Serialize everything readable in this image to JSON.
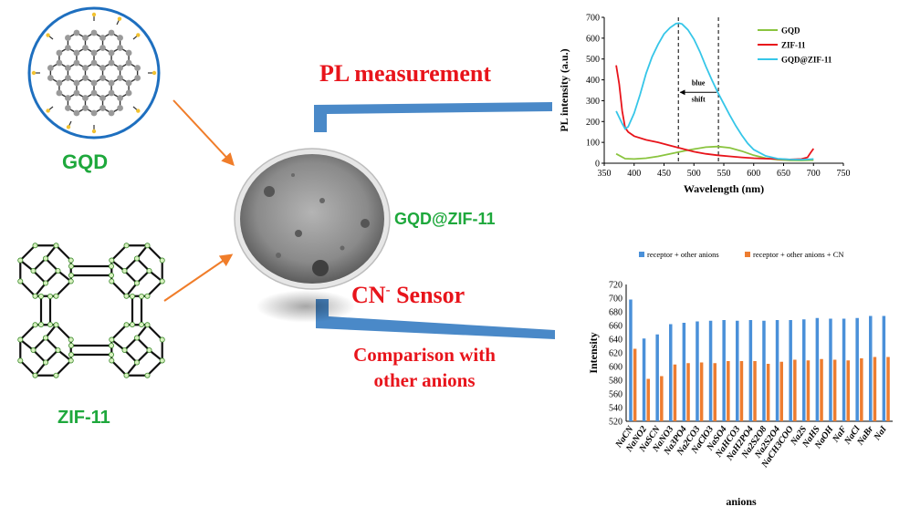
{
  "labels": {
    "gqd": "GQD",
    "zif": "ZIF-11",
    "composite": "GQD@ZIF-11",
    "pl_measurement": "PL measurement",
    "cn_sensor_main": "CN",
    "cn_sensor_sup": "-",
    "cn_sensor_rest": " Sensor",
    "comparison_line1": "Comparison with",
    "comparison_line2": "other anions"
  },
  "colors": {
    "label_green": "#1ea83c",
    "label_red": "#e8141b",
    "arrow_orange": "#f07d2a",
    "callout_blue": "#4a89c8"
  },
  "chart_data": [
    {
      "type": "line",
      "xlabel": "Wavelength (nm)",
      "ylabel": "PL intensity (a.u.)",
      "xlim": [
        350,
        750
      ],
      "ylim": [
        0,
        700
      ],
      "xticks": [
        350,
        400,
        450,
        500,
        550,
        600,
        650,
        700,
        750
      ],
      "yticks": [
        0,
        100,
        200,
        300,
        400,
        500,
        600,
        700
      ],
      "legend_position": "top-right",
      "annotation": {
        "line1": "blue",
        "line2": "shift",
        "from_x": 541,
        "to_x": 474
      },
      "dashed_lines_x": [
        474,
        541
      ],
      "series": [
        {
          "name": "GQD",
          "color": "#8ac43f",
          "x": [
            370,
            385,
            400,
            420,
            440,
            460,
            480,
            500,
            520,
            540,
            560,
            580,
            600,
            620,
            640,
            660,
            680,
            700
          ],
          "y": [
            45,
            22,
            20,
            24,
            33,
            45,
            57,
            68,
            77,
            80,
            74,
            58,
            38,
            24,
            17,
            14,
            13,
            15
          ]
        },
        {
          "name": "ZIF-11",
          "color": "#e8141b",
          "x": [
            370,
            375,
            380,
            385,
            390,
            400,
            420,
            440,
            460,
            480,
            500,
            520,
            540,
            560,
            580,
            600,
            620,
            640,
            660,
            680,
            690,
            695,
            700
          ],
          "y": [
            470,
            380,
            250,
            170,
            150,
            130,
            112,
            100,
            85,
            70,
            55,
            45,
            38,
            33,
            28,
            24,
            22,
            20,
            18,
            20,
            28,
            50,
            70
          ]
        },
        {
          "name": "GQD@ZIF-11",
          "color": "#36c6e8",
          "x": [
            370,
            380,
            385,
            390,
            400,
            410,
            420,
            430,
            440,
            450,
            460,
            470,
            475,
            480,
            490,
            500,
            510,
            520,
            530,
            540,
            550,
            560,
            570,
            580,
            590,
            600,
            620,
            640,
            660,
            680,
            700
          ],
          "y": [
            250,
            190,
            165,
            175,
            240,
            330,
            430,
            510,
            570,
            620,
            650,
            670,
            672,
            668,
            640,
            595,
            535,
            465,
            400,
            340,
            285,
            230,
            180,
            135,
            95,
            65,
            35,
            22,
            18,
            17,
            20
          ]
        }
      ]
    },
    {
      "type": "bar",
      "xlabel": "anions",
      "ylabel": "Intensity",
      "ylim": [
        520,
        720
      ],
      "yticks": [
        520,
        540,
        560,
        580,
        600,
        620,
        640,
        660,
        680,
        700,
        720
      ],
      "legend_position": "top",
      "categories": [
        "NaCN",
        "NaNO2",
        "NaSCN",
        "NaNO3",
        "Na3PO4",
        "Na2CO3",
        "NaClO3",
        "NaSO4",
        "NaHCO3",
        "NaH2PO4",
        "Na2S2O8",
        "Na2S2O4",
        "NaCH3COO",
        "Na2S",
        "NaHS",
        "NaOH",
        "NaF",
        "NaCl",
        "NaBr",
        "NaI"
      ],
      "series": [
        {
          "name": "receptor + other anions",
          "color": "#4a90d9",
          "values": [
            698,
            641,
            647,
            662,
            664,
            666,
            667,
            668,
            667,
            668,
            667,
            668,
            668,
            669,
            671,
            670,
            670,
            671,
            674,
            674
          ]
        },
        {
          "name": "receptor + other anions + CN",
          "color": "#ed7d31",
          "values": [
            626,
            582,
            586,
            603,
            605,
            606,
            605,
            608,
            608,
            608,
            604,
            607,
            610,
            609,
            611,
            610,
            609,
            612,
            614,
            614
          ]
        }
      ]
    }
  ]
}
